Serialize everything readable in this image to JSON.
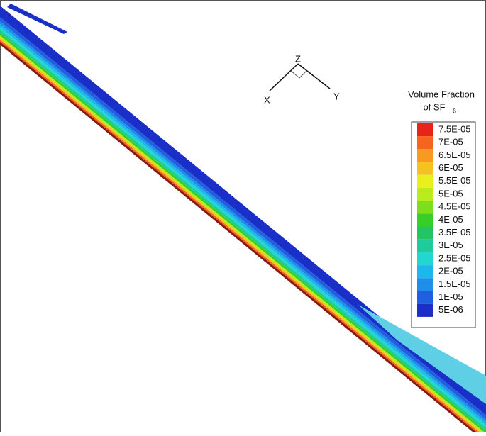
{
  "chart_data": {
    "type": "contour",
    "title_lines": [
      "Volume Fraction",
      "of SF"
    ],
    "title_subscript": "6",
    "axes_triad": {
      "x": "X",
      "y": "Y",
      "z": "Z"
    },
    "levels": [
      {
        "value": 7.5e-05,
        "label": "7.5E-05"
      },
      {
        "value": 7e-05,
        "label": "7E-05"
      },
      {
        "value": 6.5e-05,
        "label": "6.5E-05"
      },
      {
        "value": 6e-05,
        "label": "6E-05"
      },
      {
        "value": 5.5e-05,
        "label": "5.5E-05"
      },
      {
        "value": 5e-05,
        "label": "5E-05"
      },
      {
        "value": 4.5e-05,
        "label": "4.5E-05"
      },
      {
        "value": 4e-05,
        "label": "4E-05"
      },
      {
        "value": 3.5e-05,
        "label": "3.5E-05"
      },
      {
        "value": 3e-05,
        "label": "3E-05"
      },
      {
        "value": 2.5e-05,
        "label": "2.5E-05"
      },
      {
        "value": 2e-05,
        "label": "2E-05"
      },
      {
        "value": 1.5e-05,
        "label": "1.5E-05"
      },
      {
        "value": 1e-05,
        "label": "1E-05"
      },
      {
        "value": 5e-06,
        "label": "5E-06"
      }
    ],
    "level_colors": [
      "#e8231a",
      "#f5651e",
      "#f89a22",
      "#f4c31f",
      "#e9ef1c",
      "#b8ec1c",
      "#7ede1e",
      "#37cf27",
      "#22c463",
      "#1fcb9b",
      "#22d7d0",
      "#1cb8ec",
      "#1f8ee8",
      "#1f5fe0",
      "#1a2ec8"
    ]
  }
}
